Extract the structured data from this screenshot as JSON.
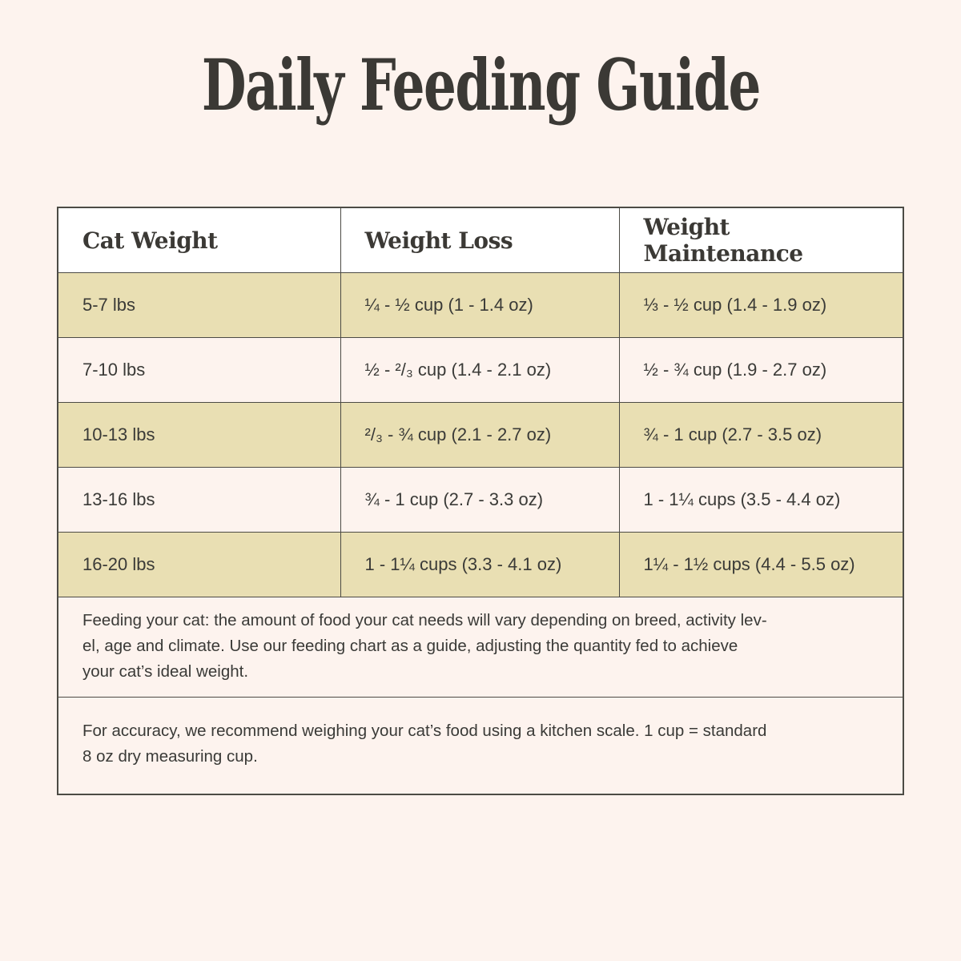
{
  "page": {
    "title": "Daily Feeding Guide"
  },
  "colors": {
    "page_background": "#fdf3ee",
    "header_row_background": "#ffffff",
    "olive_row_background": "#e9dfb3",
    "cream_row_background": "#fdf3ee",
    "table_border": "#4c4b45",
    "title_text": "#3b3935",
    "body_text": "#3a3a37"
  },
  "table": {
    "columns": [
      {
        "label": "Cat Weight"
      },
      {
        "label": "Weight Loss"
      },
      {
        "label": "Weight Maintenance"
      }
    ],
    "rows": [
      {
        "weight": "5-7 lbs",
        "loss": "¼ - ½ cup (1 - 1.4 oz)",
        "maintenance": "⅓ - ½ cup (1.4 - 1.9 oz)"
      },
      {
        "weight": "7-10 lbs",
        "loss": "½ - ²/₃ cup (1.4 - 2.1 oz)",
        "maintenance": "½ - ¾ cup (1.9 - 2.7 oz)"
      },
      {
        "weight": "10-13 lbs",
        "loss": "²/₃ - ¾ cup (2.1 - 2.7 oz)",
        "maintenance": "¾ - 1 cup (2.7 - 3.5 oz)"
      },
      {
        "weight": "13-16 lbs",
        "loss": "¾ - 1 cup (2.7 - 3.3 oz)",
        "maintenance": "1 - 1¼ cups (3.5 - 4.4 oz)"
      },
      {
        "weight": "16-20 lbs",
        "loss": "1 - 1¼ cups (3.3 - 4.1 oz)",
        "maintenance": "1¼ - 1½ cups (4.4 - 5.5 oz)"
      }
    ],
    "notes": [
      "Feeding your cat: the amount of food your cat needs will vary depending on breed, activity lev-\nel, age and climate. Use our feeding chart as a guide, adjusting the quantity fed to achieve\nyour cat’s ideal weight.",
      "For accuracy, we recommend weighing your cat’s food using a kitchen scale. 1 cup = standard\n8 oz dry measuring cup."
    ]
  }
}
